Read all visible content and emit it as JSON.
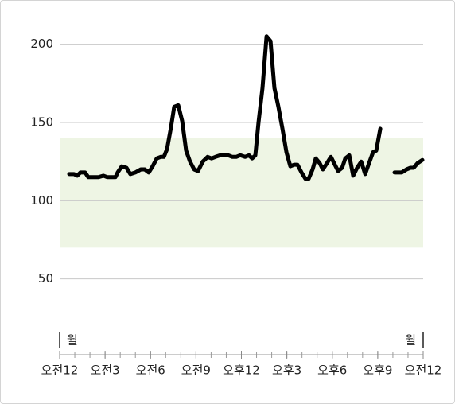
{
  "chart_data": {
    "type": "line",
    "x": [
      0.63,
      0.95,
      1.16,
      1.37,
      1.68,
      1.89,
      2.2,
      2.57,
      2.89,
      3.15,
      3.68,
      3.83,
      4.1,
      4.41,
      4.67,
      4.99,
      5.36,
      5.62,
      5.88,
      6.14,
      6.41,
      6.67,
      6.88,
      7.09,
      7.35,
      7.56,
      7.83,
      8.09,
      8.35,
      8.61,
      8.88,
      9.14,
      9.45,
      9.77,
      10.03,
      10.29,
      10.61,
      10.87,
      11.13,
      11.4,
      11.66,
      11.92,
      12.24,
      12.5,
      12.71,
      12.92,
      13.13,
      13.39,
      13.66,
      13.92,
      14.18,
      14.44,
      14.71,
      14.97,
      15.23,
      15.49,
      15.7,
      15.97,
      16.23,
      16.44,
      16.7,
      16.91,
      17.17,
      17.38,
      17.65,
      17.91,
      18.12,
      18.38,
      18.65,
      18.86,
      19.12,
      19.38,
      19.64,
      19.91,
      20.17,
      20.43,
      20.69,
      20.9,
      21.17,
      21.6,
      22.11,
      22.58,
      22.9,
      23.16,
      23.37,
      23.63,
      23.95
    ],
    "series": [
      {
        "color": "#000000",
        "values": [
          117,
          117,
          116,
          118,
          118,
          115,
          115,
          115,
          116,
          115,
          115,
          118,
          122,
          121,
          117,
          118,
          120,
          120,
          118,
          122,
          127,
          128,
          128,
          133,
          147,
          160,
          161,
          151,
          132,
          125,
          120,
          119,
          125,
          128,
          127,
          128,
          129,
          129,
          129,
          128,
          128,
          129,
          128,
          129,
          127,
          129,
          150,
          172,
          205,
          202,
          172,
          160,
          146,
          131,
          122,
          123,
          123,
          118,
          114,
          114,
          120,
          127,
          124,
          120,
          124,
          128,
          124,
          119,
          121,
          127,
          129,
          116,
          121,
          125,
          117,
          124,
          131,
          132,
          146,
          null,
          118,
          118,
          120,
          121,
          121,
          124,
          126
        ]
      }
    ],
    "target_range": [
      70,
      140
    ],
    "target_color": "#eef5e4",
    "xlim": [
      0,
      24
    ],
    "xticks": [
      {
        "value": 0,
        "label": "오전12"
      },
      {
        "value": 3,
        "label": "오전3"
      },
      {
        "value": 6,
        "label": "오전6"
      },
      {
        "value": 9,
        "label": "오전9"
      },
      {
        "value": 12,
        "label": "오후12"
      },
      {
        "value": 15,
        "label": "오후3"
      },
      {
        "value": 18,
        "label": "오후6"
      },
      {
        "value": 21,
        "label": "오후9"
      },
      {
        "value": 24,
        "label": "오전12"
      }
    ],
    "x_minor_ticks": [
      0,
      1,
      2,
      3,
      4,
      5,
      6,
      7,
      8,
      9,
      10,
      11,
      12,
      13,
      14,
      15,
      16,
      17,
      18,
      19,
      20,
      21,
      22,
      23,
      24
    ],
    "day_labels": [
      {
        "value": 0,
        "label": "월"
      },
      {
        "value": 24,
        "label": "월"
      }
    ],
    "ylim": [
      0,
      210
    ],
    "yticks": [
      50,
      100,
      150,
      200
    ],
    "grid": true
  }
}
